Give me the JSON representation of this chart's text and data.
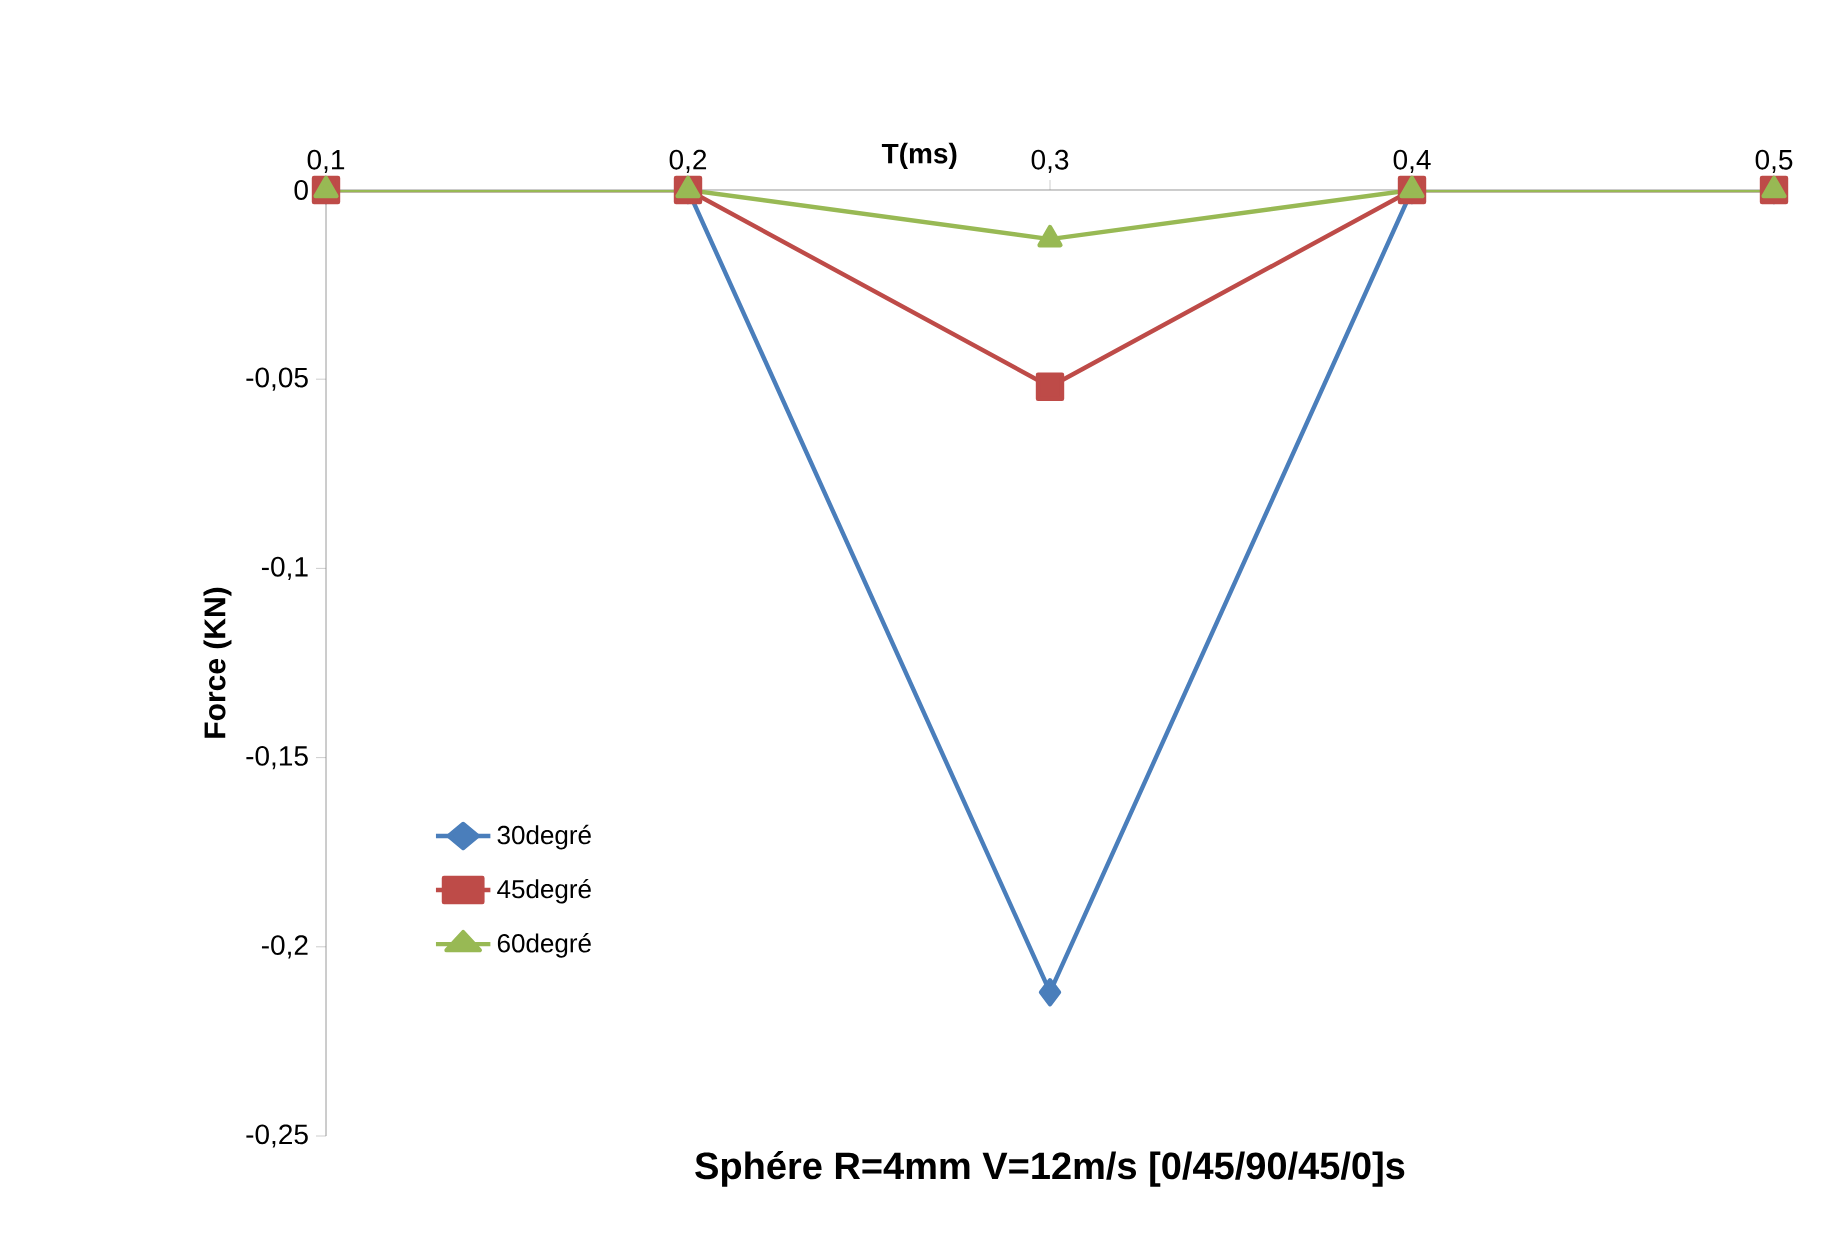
{
  "chart_data": {
    "type": "line",
    "title": "Sphére R=4mm V=12m/s [0/45/90/45/0]s",
    "xlabel": "T(ms)",
    "ylabel": "Force (KN)",
    "x": [
      0.1,
      0.2,
      0.3,
      0.4,
      0.5
    ],
    "series": [
      {
        "name": "30degré",
        "color": "#4a7ebb",
        "marker": "diamond",
        "values": [
          0,
          0,
          -0.212,
          0,
          0
        ]
      },
      {
        "name": "45degré",
        "color": "#be4b48",
        "marker": "square",
        "values": [
          0,
          0,
          -0.052,
          0,
          0
        ]
      },
      {
        "name": "60degré",
        "color": "#98b954",
        "marker": "triangle",
        "values": [
          0,
          0,
          -0.013,
          0,
          0
        ]
      }
    ],
    "xlim": [
      0.1,
      0.5
    ],
    "xticks": [
      {
        "value": 0.1,
        "label": "0,1"
      },
      {
        "value": 0.2,
        "label": "0,2"
      },
      {
        "value": 0.3,
        "label": "0,3"
      },
      {
        "value": 0.4,
        "label": "0,4"
      },
      {
        "value": 0.5,
        "label": "0,5"
      }
    ],
    "ylim": [
      -0.25,
      0
    ],
    "yticks": [
      {
        "value": -0.25,
        "label": "-0,25"
      },
      {
        "value": -0.2,
        "label": "-0,2"
      },
      {
        "value": -0.15,
        "label": "-0,15"
      },
      {
        "value": -0.1,
        "label": "-0,1"
      },
      {
        "value": -0.05,
        "label": "-0,05"
      },
      0
    ],
    "legend": "left",
    "grid": false,
    "line_style": "solid"
  }
}
